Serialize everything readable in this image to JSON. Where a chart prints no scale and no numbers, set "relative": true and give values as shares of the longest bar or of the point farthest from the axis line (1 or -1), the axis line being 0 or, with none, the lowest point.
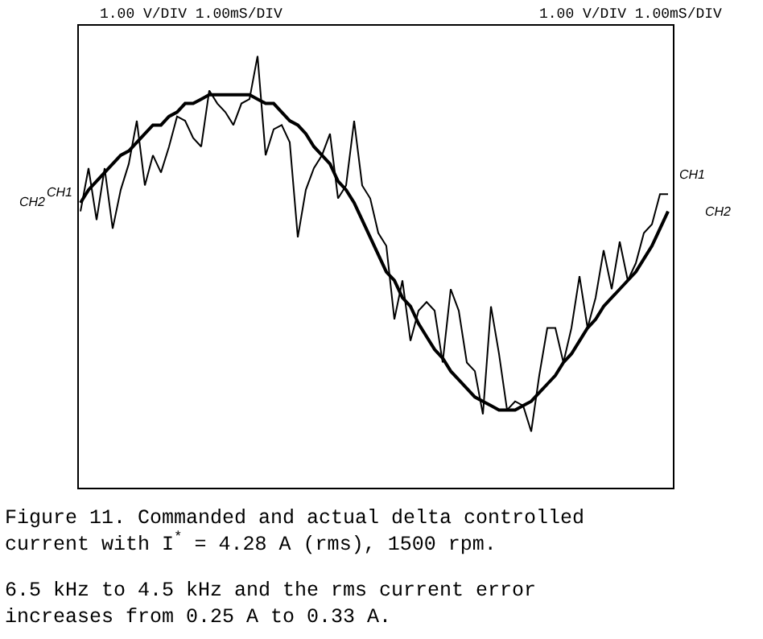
{
  "chart_data": {
    "type": "line",
    "relative": true,
    "legend": false,
    "marker": "none",
    "line_style": "solid",
    "categories": [
      null,
      null,
      null,
      null,
      null,
      null,
      null,
      null,
      null,
      null,
      null,
      null,
      null,
      null,
      null,
      null,
      null,
      null,
      null,
      null,
      null,
      null,
      null,
      null,
      null,
      null,
      null,
      null,
      null,
      null,
      null,
      null,
      null,
      null,
      null,
      null,
      null,
      null,
      null,
      null,
      null,
      null,
      null,
      null,
      null,
      null,
      null,
      null,
      null,
      null,
      null,
      null,
      null,
      null,
      null,
      null,
      null,
      null,
      null,
      null,
      null,
      null,
      null,
      null,
      null,
      null,
      null,
      null,
      null,
      null,
      null,
      null,
      null,
      null
    ],
    "series": [
      {
        "name": "CH1",
        "color": "#000000",
        "values": [
          0.64,
          0.74,
          0.62,
          0.74,
          0.6,
          0.69,
          0.75,
          0.85,
          0.7,
          0.77,
          0.73,
          0.79,
          0.86,
          0.85,
          0.81,
          0.79,
          0.92,
          0.89,
          0.87,
          0.84,
          0.89,
          0.9,
          1,
          0.77,
          0.83,
          0.84,
          0.8,
          0.58,
          0.69,
          0.74,
          0.77,
          0.82,
          0.67,
          0.7,
          0.85,
          0.7,
          0.67,
          0.59,
          0.56,
          0.39,
          0.48,
          0.34,
          0.41,
          0.43,
          0.41,
          0.29,
          0.46,
          0.41,
          0.29,
          0.27,
          0.17,
          0.42,
          0.31,
          0.18,
          0.2,
          0.19,
          0.13,
          0.26,
          0.37,
          0.37,
          0.29,
          0.37,
          0.49,
          0.37,
          0.44,
          0.55,
          0.46,
          0.57,
          0.48,
          0.52,
          0.59,
          0.61,
          0.68,
          0.68
        ]
      },
      {
        "name": "CH2",
        "color": "#000000",
        "values": [
          0.66,
          0.69,
          0.71,
          0.73,
          0.75,
          0.77,
          0.78,
          0.8,
          0.82,
          0.84,
          0.84,
          0.86,
          0.87,
          0.89,
          0.89,
          0.9,
          0.91,
          0.91,
          0.91,
          0.91,
          0.91,
          0.91,
          0.9,
          0.89,
          0.89,
          0.87,
          0.85,
          0.84,
          0.82,
          0.79,
          0.77,
          0.75,
          0.71,
          0.69,
          0.66,
          0.62,
          0.58,
          0.54,
          0.5,
          0.48,
          0.44,
          0.42,
          0.38,
          0.35,
          0.32,
          0.3,
          0.27,
          0.25,
          0.23,
          0.21,
          0.2,
          0.19,
          0.18,
          0.18,
          0.18,
          0.19,
          0.2,
          0.22,
          0.24,
          0.26,
          0.29,
          0.31,
          0.34,
          0.37,
          0.39,
          0.42,
          0.44,
          0.46,
          0.48,
          0.5,
          0.53,
          0.56,
          0.6,
          0.64
        ]
      }
    ],
    "annotations": [
      "1.00 V/DIV 1.00mS/DIV",
      "1.00 V/DIV 1.00mS/DIV",
      "Figure 11. Commanded and actual delta controlled current with I$^{*}$ = 4.28 A (rms), 1500 rpm.",
      "6.5 kHz to 4.5 kHz and the rms current error increases from 0.25 A to 0.33 A."
    ]
  }
}
